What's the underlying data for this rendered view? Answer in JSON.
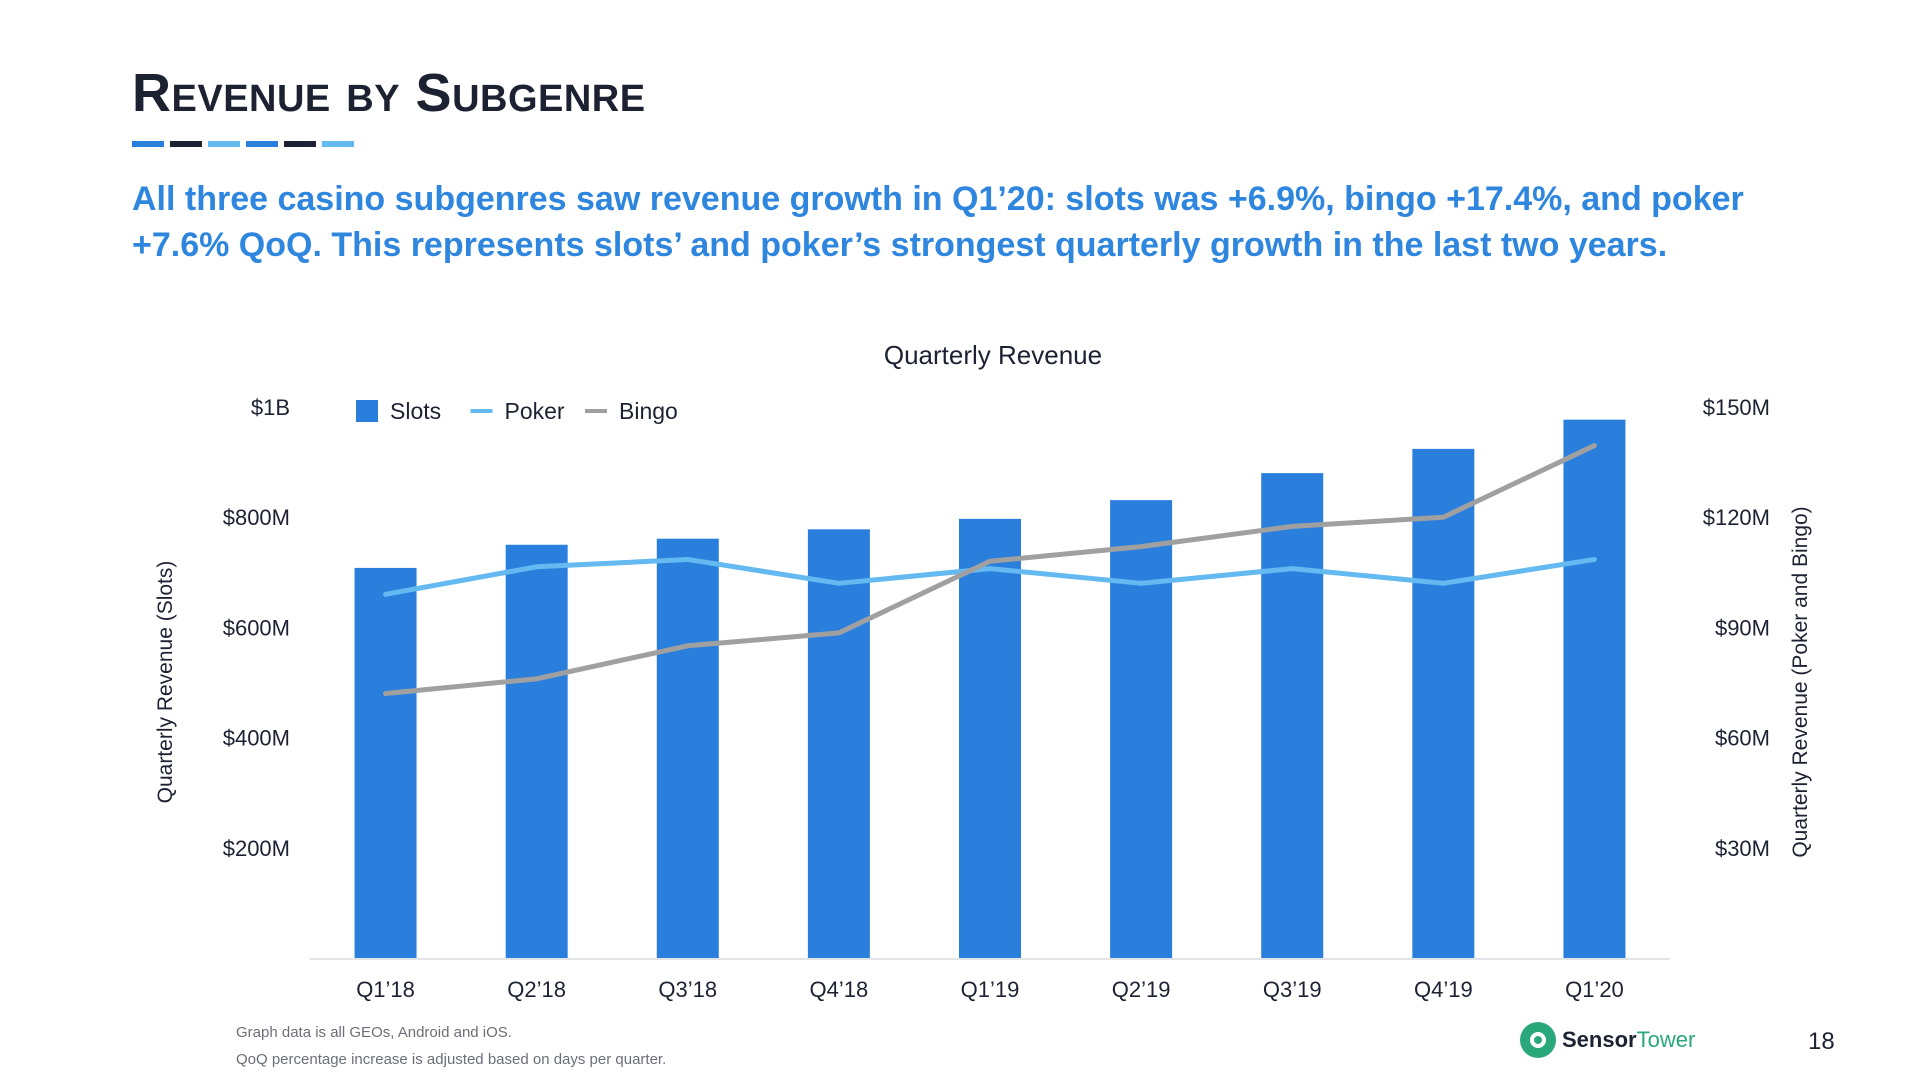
{
  "slide": {
    "title": "Revenue by Subgenre",
    "subtitle": "All three casino subgenres saw revenue growth in Q1’20: slots was +6.9%, bingo +17.4%, and poker +7.6% QoQ. This represents slots’ and poker’s strongest quarterly growth in the last two years.",
    "footnote1": "Graph data is all GEOs, Android and iOS.",
    "footnote2": "QoQ percentage increase is adjusted based on days per quarter.",
    "logo_part1": "Sensor",
    "logo_part2": "Tower",
    "page_number": "18",
    "rule_colors": [
      "#2a7fdc",
      "#1d2233",
      "#63b9f0",
      "#2a7fdc",
      "#1d2233",
      "#63b9f0"
    ]
  },
  "chart_data": {
    "type": "bar",
    "title": "Quarterly Revenue",
    "categories": [
      "Q1’18",
      "Q2’18",
      "Q3’18",
      "Q4’18",
      "Q1’19",
      "Q2’19",
      "Q3’19",
      "Q4’19",
      "Q1’20"
    ],
    "y_left": {
      "label": "Quarterly Revenue (Slots)",
      "range": [
        0,
        1000000000
      ],
      "ticks": [
        200000000,
        400000000,
        600000000,
        800000000,
        1000000000
      ],
      "tick_labels": [
        "$200M",
        "$400M",
        "$600M",
        "$800M",
        "$1B"
      ]
    },
    "y_right": {
      "label": "Quarterly Revenue (Poker and Bingo)",
      "range": [
        0,
        150000000
      ],
      "ticks": [
        30000000,
        60000000,
        90000000,
        120000000,
        150000000
      ],
      "tick_labels": [
        "$30M",
        "$60M",
        "$90M",
        "$120M",
        "$150M"
      ]
    },
    "series": [
      {
        "name": "Slots",
        "type": "bar",
        "axis": "left",
        "color": "#2a7fdc",
        "values": [
          708000000,
          750000000,
          761000000,
          778000000,
          797000000,
          831000000,
          880000000,
          924000000,
          977000000
        ]
      },
      {
        "name": "Poker",
        "type": "line",
        "axis": "right",
        "color": "#63b9f0",
        "values": [
          99000000,
          106500000,
          108500000,
          102000000,
          106000000,
          102000000,
          106000000,
          102000000,
          108500000
        ]
      },
      {
        "name": "Bingo",
        "type": "line",
        "axis": "right",
        "color": "#a0a0a0",
        "values": [
          72000000,
          76000000,
          85000000,
          88500000,
          108000000,
          112000000,
          117500000,
          120000000,
          139500000
        ]
      }
    ],
    "legend_position": "top-left",
    "grid": false
  }
}
